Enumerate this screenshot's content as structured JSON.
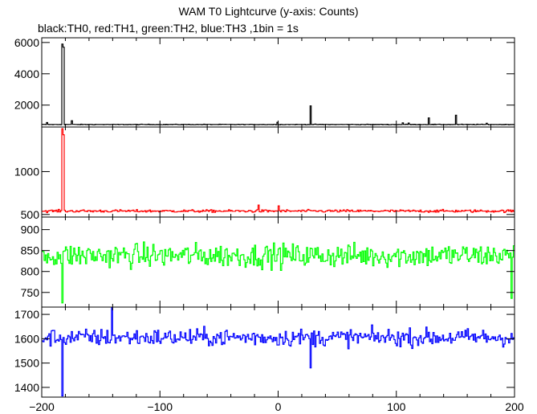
{
  "title": "WAM T0 Lightcurve (y-axis: Counts)",
  "subtitle": "black:TH0, red:TH1, green:TH2, blue:TH3 ,1bin = 1s",
  "chart_data": {
    "type": "line",
    "title": "WAM T0 Lightcurve (y-axis: Counts)",
    "xlabel": "",
    "ylabel": "Counts",
    "xlim": [
      -200,
      200
    ],
    "x_ticks": [
      -200,
      -100,
      0,
      100,
      200
    ],
    "x_tick_labels": [
      "−200",
      "−100",
      "0",
      "100",
      "200"
    ],
    "grid": false,
    "bin_seconds": 1,
    "panels": [
      {
        "name": "TH0",
        "color": "#000000",
        "ylim": [
          600,
          6300
        ],
        "yticks": [
          2000,
          4000,
          6000
        ],
        "baseline": 760,
        "noise": 18,
        "peaks": [
          {
            "x": -183,
            "y": 5900
          },
          {
            "x": -182,
            "y": 5700
          },
          {
            "x": -196,
            "y": 880
          },
          {
            "x": -175,
            "y": 1000
          },
          {
            "x": -1,
            "y": 900
          },
          {
            "x": 27,
            "y": 1950
          },
          {
            "x": 105,
            "y": 860
          },
          {
            "x": 110,
            "y": 850
          },
          {
            "x": 127,
            "y": 1180
          },
          {
            "x": 150,
            "y": 1350
          },
          {
            "x": 176,
            "y": 840
          }
        ]
      },
      {
        "name": "TH1",
        "color": "#ff0000",
        "ylim": [
          470,
          1520
        ],
        "yticks": [
          500,
          1000
        ],
        "baseline": 540,
        "noise": 15,
        "peaks": [
          {
            "x": -183,
            "y": 1500
          },
          {
            "x": -182,
            "y": 1430
          },
          {
            "x": -17,
            "y": 610
          },
          {
            "x": 0,
            "y": 600
          }
        ]
      },
      {
        "name": "TH2",
        "color": "#00ff00",
        "ylim": [
          715,
          930
        ],
        "yticks": [
          750,
          800,
          850,
          900
        ],
        "baseline": 838,
        "noise": 28,
        "peaks": [
          {
            "x": -183,
            "y": 725
          },
          {
            "x": 197,
            "y": 736
          }
        ]
      },
      {
        "name": "TH3",
        "color": "#0000ff",
        "ylim": [
          1360,
          1730
        ],
        "yticks": [
          1400,
          1500,
          1600,
          1700
        ],
        "baseline": 1605,
        "noise": 35,
        "peaks": [
          {
            "x": -183,
            "y": 1365
          },
          {
            "x": -141,
            "y": 1730
          },
          {
            "x": 27,
            "y": 1480
          }
        ]
      }
    ]
  }
}
